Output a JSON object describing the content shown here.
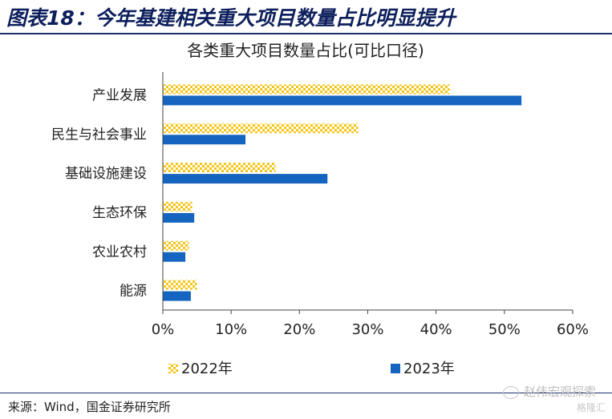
{
  "figure": {
    "title": "图表18：今年基建相关重大项目数量占比明显提升",
    "source": "来源：Wind，国金证券研究所"
  },
  "watermark": {
    "channel": "赵伟宏观探索",
    "site": "格隆汇"
  },
  "colors": {
    "series_2022": "#f5c518",
    "series_2023": "#1565c0",
    "title_navy": "#0d1f5c"
  },
  "chart_data": {
    "type": "bar",
    "orientation": "horizontal",
    "title": "各类重大项目数量占比(可比口径)",
    "categories": [
      "产业发展",
      "民生与社会事业",
      "基础设施建设",
      "生态环保",
      "农业农村",
      "能源"
    ],
    "series": [
      {
        "name": "2022年",
        "values": [
          42,
          28.6,
          16.5,
          4.3,
          3.8,
          5.0
        ],
        "pattern": "crosshatch",
        "color": "#f5c518"
      },
      {
        "name": "2023年",
        "values": [
          52.5,
          12.1,
          24.1,
          4.6,
          3.3,
          4.1
        ],
        "pattern": "solid",
        "color": "#1565c0"
      }
    ],
    "xlim": [
      0,
      60
    ],
    "xticks": [
      0,
      10,
      20,
      30,
      40,
      50,
      60
    ],
    "xtick_labels": [
      "0%",
      "10%",
      "20%",
      "30%",
      "40%",
      "50%",
      "60%"
    ],
    "xlabel": "",
    "ylabel": "",
    "grid": false,
    "legend_position": "bottom"
  }
}
